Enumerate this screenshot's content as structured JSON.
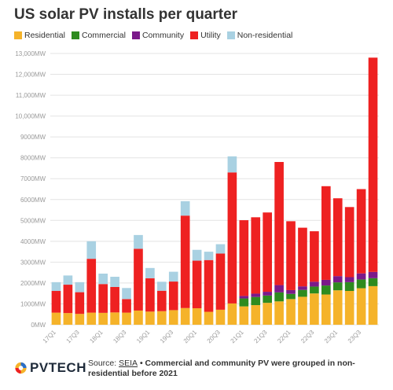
{
  "chart_data": {
    "type": "bar",
    "stacked": true,
    "title": "US solar PV installs per quarter",
    "xlabel": "",
    "ylabel": "",
    "ylim": [
      0,
      13000
    ],
    "yticks": [
      0,
      1000,
      2000,
      3000,
      4000,
      5000,
      6000,
      7000,
      8000,
      9000,
      10000,
      11000,
      12000,
      13000
    ],
    "ytick_labels": [
      "0MW",
      "1000MW",
      "2000MW",
      "3000MW",
      "4000MW",
      "5000MW",
      "6000MW",
      "7000MW",
      "8000MW",
      "9000MW",
      "10,000MW",
      "11,000MW",
      "12,000MW",
      "13,000MW"
    ],
    "grid": true,
    "legend_position": "top-left",
    "categories": [
      "17Q1",
      "17Q2",
      "17Q3",
      "17Q4",
      "18Q1",
      "18Q2",
      "18Q3",
      "18Q4",
      "19Q1",
      "19Q2",
      "19Q3",
      "19Q4",
      "20Q1",
      "20Q2",
      "20Q3",
      "20Q4",
      "21Q1",
      "21Q2",
      "21Q3",
      "21Q4",
      "22Q1",
      "22Q2",
      "22Q3",
      "22Q4",
      "23Q1",
      "23Q2",
      "23Q3",
      "23Q4"
    ],
    "xtick_labels": [
      "17Q1",
      "",
      "17Q3",
      "",
      "18Q1",
      "",
      "18Q3",
      "",
      "19Q1",
      "",
      "19Q3",
      "",
      "20Q1",
      "",
      "20Q3",
      "",
      "21Q1",
      "",
      "21Q3",
      "",
      "22Q1",
      "",
      "22Q3",
      "",
      "23Q1",
      "",
      "23Q3",
      ""
    ],
    "series": [
      {
        "name": "Residential",
        "color": "#f5b32a",
        "values": [
          580,
          560,
          520,
          580,
          570,
          590,
          580,
          680,
          630,
          650,
          700,
          800,
          790,
          620,
          720,
          1020,
          880,
          940,
          1050,
          1120,
          1230,
          1340,
          1500,
          1450,
          1650,
          1620,
          1750,
          1850
        ]
      },
      {
        "name": "Commercial",
        "color": "#2e8b1f",
        "values": [
          0,
          0,
          0,
          0,
          0,
          0,
          0,
          0,
          0,
          0,
          0,
          0,
          0,
          0,
          0,
          0,
          380,
          390,
          350,
          430,
          250,
          330,
          330,
          430,
          380,
          420,
          420,
          380
        ]
      },
      {
        "name": "Community",
        "color": "#7b1a8a",
        "values": [
          0,
          0,
          0,
          0,
          0,
          0,
          0,
          0,
          0,
          0,
          0,
          0,
          0,
          0,
          0,
          0,
          120,
          160,
          180,
          350,
          180,
          170,
          230,
          270,
          300,
          240,
          290,
          300
        ]
      },
      {
        "name": "Utility",
        "color": "#ee2121",
        "values": [
          1040,
          1360,
          1040,
          2580,
          1380,
          1220,
          650,
          2960,
          1600,
          980,
          1370,
          4430,
          2280,
          2480,
          2690,
          6280,
          3630,
          3660,
          3800,
          5900,
          3300,
          2810,
          2420,
          4490,
          3730,
          3360,
          4040,
          10270
        ]
      },
      {
        "name": "Non-residential",
        "color": "#a9d1e2",
        "values": [
          420,
          440,
          480,
          840,
          500,
          490,
          530,
          660,
          490,
          430,
          470,
          690,
          520,
          400,
          450,
          770,
          0,
          0,
          0,
          0,
          0,
          0,
          0,
          0,
          0,
          0,
          0,
          0
        ]
      }
    ]
  },
  "footer": {
    "logo_text": "PVTECH",
    "source_prefix": "Source: ",
    "source_link": "SEIA",
    "source_note": " • Commercial and community PV were grouped in non-residential before 2021"
  }
}
